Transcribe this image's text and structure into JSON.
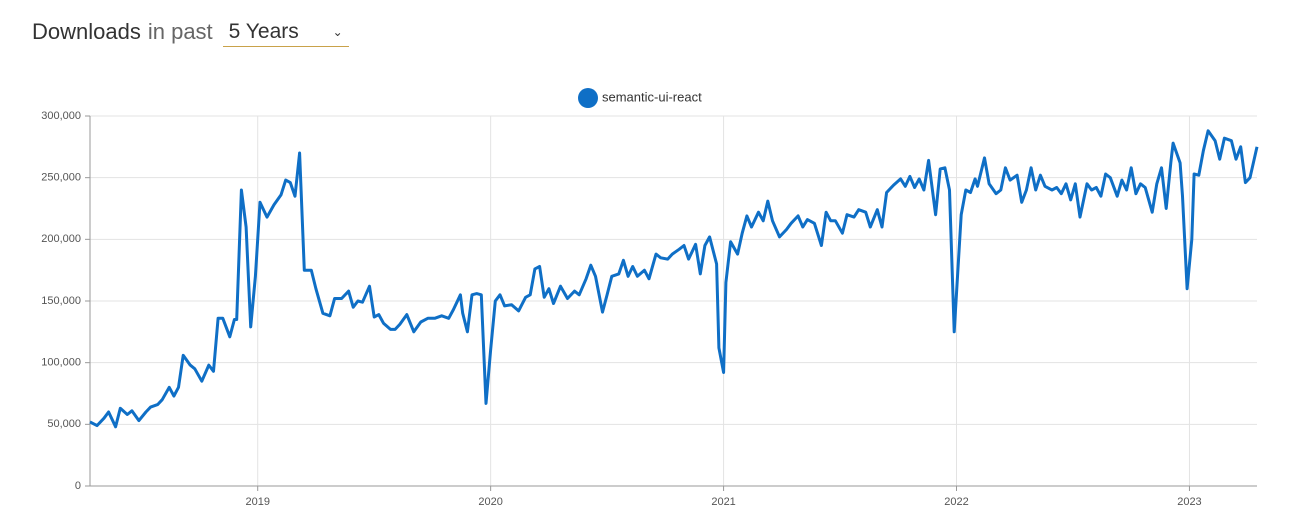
{
  "header": {
    "title": "Downloads",
    "suffix": "in past",
    "period": "5 Years"
  },
  "chart_data": {
    "type": "line",
    "xlim": [
      2018.28,
      2023.29
    ],
    "xticks": [
      2019,
      2020,
      2021,
      2022,
      2023
    ],
    "ylim": [
      0,
      300000
    ],
    "yticks": [
      0,
      {
        "value": 50000,
        "label": "50,000"
      },
      {
        "value": 100000,
        "label": "100,000"
      },
      {
        "value": 150000,
        "label": "150,000"
      },
      {
        "value": 200000,
        "label": "200,000"
      },
      {
        "value": 250000,
        "label": "250,000"
      },
      {
        "value": 300000,
        "label": "300,000"
      }
    ],
    "grid": true,
    "x": [
      2018.28,
      2018.31,
      2018.34,
      2018.36,
      2018.39,
      2018.41,
      2018.44,
      2018.46,
      2018.49,
      2018.52,
      2018.54,
      2018.57,
      2018.59,
      2018.62,
      2018.64,
      2018.66,
      2018.68,
      2018.71,
      2018.73,
      2018.76,
      2018.79,
      2018.81,
      2018.83,
      2018.85,
      2018.88,
      2018.9,
      2018.91,
      2018.93,
      2018.95,
      2018.97,
      2018.99,
      2019.01,
      2019.04,
      2019.07,
      2019.1,
      2019.12,
      2019.14,
      2019.16,
      2019.18,
      2019.2,
      2019.23,
      2019.25,
      2019.28,
      2019.31,
      2019.33,
      2019.36,
      2019.39,
      2019.41,
      2019.43,
      2019.45,
      2019.48,
      2019.5,
      2019.52,
      2019.54,
      2019.57,
      2019.59,
      2019.61,
      2019.64,
      2019.67,
      2019.7,
      2019.73,
      2019.76,
      2019.79,
      2019.82,
      2019.84,
      2019.87,
      2019.88,
      2019.9,
      2019.92,
      2019.94,
      2019.96,
      2019.98,
      2020.0,
      2020.02,
      2020.04,
      2020.06,
      2020.09,
      2020.12,
      2020.15,
      2020.17,
      2020.19,
      2020.21,
      2020.23,
      2020.25,
      2020.27,
      2020.3,
      2020.33,
      2020.36,
      2020.38,
      2020.41,
      2020.43,
      2020.45,
      2020.48,
      2020.5,
      2020.52,
      2020.55,
      2020.57,
      2020.59,
      2020.61,
      2020.63,
      2020.66,
      2020.68,
      2020.71,
      2020.73,
      2020.76,
      2020.78,
      2020.81,
      2020.83,
      2020.85,
      2020.88,
      2020.9,
      2020.92,
      2020.94,
      2020.97,
      2020.98,
      2021.0,
      2021.01,
      2021.03,
      2021.06,
      2021.08,
      2021.1,
      2021.12,
      2021.15,
      2021.17,
      2021.19,
      2021.21,
      2021.24,
      2021.27,
      2021.29,
      2021.32,
      2021.34,
      2021.36,
      2021.39,
      2021.42,
      2021.44,
      2021.46,
      2021.48,
      2021.51,
      2021.53,
      2021.56,
      2021.58,
      2021.61,
      2021.63,
      2021.66,
      2021.68,
      2021.7,
      2021.73,
      2021.76,
      2021.78,
      2021.8,
      2021.82,
      2021.84,
      2021.86,
      2021.88,
      2021.91,
      2021.93,
      2021.95,
      2021.97,
      2021.99,
      2022.02,
      2022.04,
      2022.06,
      2022.08,
      2022.09,
      2022.12,
      2022.14,
      2022.17,
      2022.19,
      2022.21,
      2022.23,
      2022.26,
      2022.28,
      2022.3,
      2022.32,
      2022.34,
      2022.36,
      2022.38,
      2022.41,
      2022.43,
      2022.45,
      2022.47,
      2022.49,
      2022.51,
      2022.53,
      2022.56,
      2022.58,
      2022.6,
      2022.62,
      2022.64,
      2022.66,
      2022.69,
      2022.71,
      2022.73,
      2022.75,
      2022.77,
      2022.79,
      2022.81,
      2022.84,
      2022.86,
      2022.88,
      2022.9,
      2022.92,
      2022.93,
      2022.96,
      2022.97,
      2022.99,
      2023.01,
      2023.02,
      2023.04,
      2023.06,
      2023.08,
      2023.11,
      2023.13,
      2023.15,
      2023.18,
      2023.2,
      2023.22,
      2023.24,
      2023.26,
      2023.29
    ],
    "series": [
      {
        "name": "semantic-ui-react",
        "color": "#0f6fc6",
        "values": [
          52000,
          49000,
          55000,
          60000,
          48000,
          63000,
          58000,
          61000,
          53000,
          60000,
          64000,
          66000,
          70000,
          80000,
          73000,
          80000,
          106000,
          98000,
          95000,
          85000,
          98000,
          93000,
          136000,
          136000,
          121000,
          135000,
          135000,
          240000,
          210000,
          129000,
          170000,
          230000,
          218000,
          228000,
          236000,
          248000,
          246000,
          235000,
          270000,
          175000,
          175000,
          160000,
          140000,
          138000,
          152000,
          152000,
          158000,
          145000,
          150000,
          149000,
          162000,
          137000,
          139000,
          132000,
          127000,
          127000,
          131000,
          139000,
          125000,
          133000,
          136000,
          136000,
          138000,
          136000,
          143000,
          155000,
          140000,
          125000,
          155000,
          156000,
          155000,
          67000,
          110000,
          150000,
          155000,
          146000,
          147000,
          142000,
          153000,
          155000,
          176000,
          178000,
          153000,
          160000,
          148000,
          162000,
          152000,
          158000,
          155000,
          168000,
          179000,
          170000,
          141000,
          155000,
          170000,
          172000,
          183000,
          170000,
          178000,
          170000,
          175000,
          168000,
          188000,
          185000,
          184000,
          188000,
          192000,
          195000,
          184000,
          196000,
          172000,
          195000,
          202000,
          180000,
          112000,
          92000,
          165000,
          198000,
          188000,
          205000,
          219000,
          210000,
          222000,
          215000,
          231000,
          215000,
          202000,
          208000,
          213000,
          219000,
          210000,
          216000,
          213000,
          195000,
          222000,
          215000,
          215000,
          205000,
          220000,
          218000,
          224000,
          222000,
          210000,
          224000,
          210000,
          238000,
          244000,
          249000,
          243000,
          251000,
          242000,
          249000,
          240000,
          264000,
          220000,
          257000,
          258000,
          240000,
          125000,
          220000,
          240000,
          238000,
          249000,
          243000,
          266000,
          245000,
          237000,
          240000,
          258000,
          248000,
          252000,
          230000,
          240000,
          258000,
          240000,
          252000,
          243000,
          240000,
          242000,
          237000,
          245000,
          232000,
          245000,
          218000,
          245000,
          240000,
          242000,
          235000,
          253000,
          250000,
          235000,
          248000,
          240000,
          258000,
          237000,
          245000,
          242000,
          222000,
          245000,
          258000,
          225000,
          262000,
          278000,
          262000,
          235000,
          160000,
          200000,
          253000,
          252000,
          272000,
          288000,
          280000,
          265000,
          282000,
          280000,
          265000,
          275000,
          246000,
          250000,
          275000
        ]
      }
    ]
  }
}
